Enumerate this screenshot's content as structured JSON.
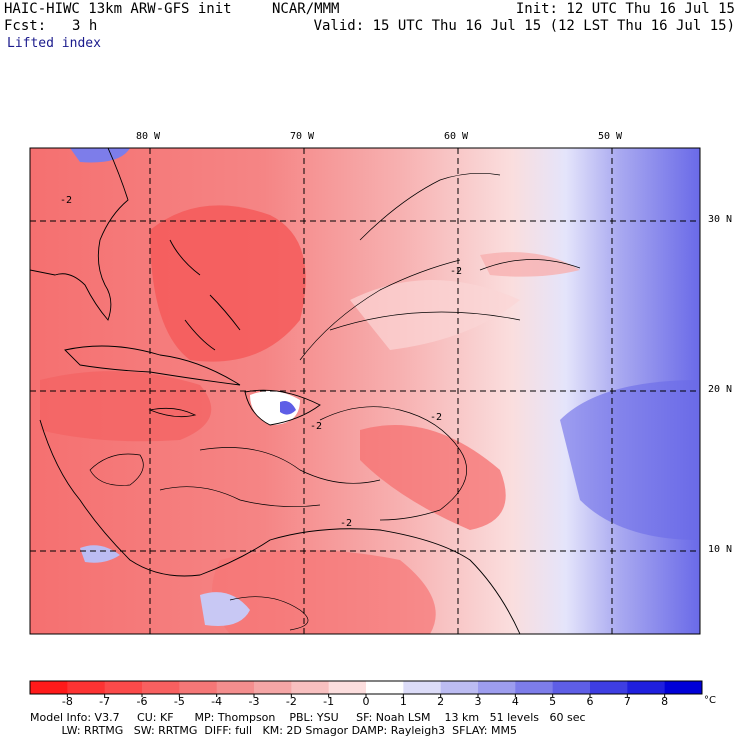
{
  "header": {
    "model": "HAIC-HIWC 13km ARW-GFS init",
    "center": "NCAR/MMM",
    "init": "Init: 12 UTC Thu 16 Jul 15",
    "fcst_label": "Fcst:",
    "fcst_value": "3 h",
    "valid": "Valid: 15 UTC Thu 16 Jul 15 (12 LST Thu 16 Jul 15)",
    "field": "Lifted index"
  },
  "map": {
    "lon_labels": [
      "80 W",
      "70 W",
      "60 W",
      "50 W"
    ],
    "lat_labels": [
      "30 N",
      "20 N",
      "10 N"
    ],
    "contour_label": "-2"
  },
  "colorbar": {
    "labels": [
      "-8",
      "-7",
      "-6",
      "-5",
      "-4",
      "-3",
      "-2",
      "-1",
      "0",
      "1",
      "2",
      "3",
      "4",
      "5",
      "6",
      "7",
      "8"
    ],
    "unit": "°C",
    "colors": [
      "#ff1a1a",
      "#fd3333",
      "#fb4a4a",
      "#f86060",
      "#f57777",
      "#f48e8e",
      "#f5a6a6",
      "#f8c0c0",
      "#fcdede",
      "#ffffff",
      "#dcdcf8",
      "#bcbcf2",
      "#9d9dee",
      "#7d7dea",
      "#5e5ee6",
      "#3e3ee2",
      "#1f1fde",
      "#0000d8"
    ]
  },
  "footer": {
    "line1": "Model Info: V3.7     CU: KF      MP: Thompson    PBL: YSU     SF: Noah LSM    13 km   51 levels   60 sec",
    "line2": "         LW: RRTMG   SW: RRTMG  DIFF: full   KM: 2D Smagor DAMP: Rayleigh3  SFLAY: MM5"
  }
}
